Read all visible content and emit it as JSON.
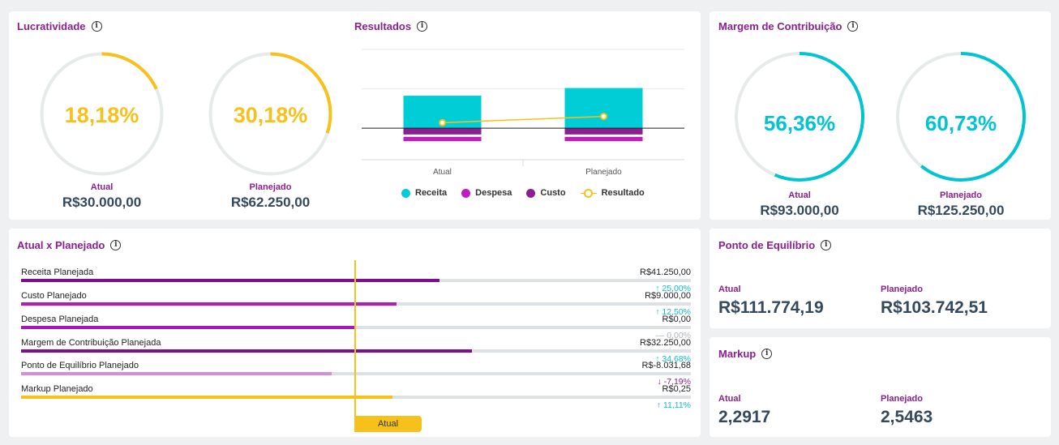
{
  "lucratividade": {
    "title": "Lucratividade",
    "info_icon": "i",
    "atual": {
      "percent_text": "18,18%",
      "percent": 18.18,
      "caption": "Atual",
      "amount": "R$30.000,00"
    },
    "planejado": {
      "percent_text": "30,18%",
      "percent": 30.18,
      "caption": "Planejado",
      "amount": "R$62.250,00"
    },
    "color": "#f5c11a"
  },
  "resultados": {
    "title": "Resultados",
    "info_icon": "i",
    "legend": [
      {
        "label": "Receita",
        "color": "#00cdd6"
      },
      {
        "label": "Despesa",
        "color": "#c41bbf"
      },
      {
        "label": "Custo",
        "color": "#8a1f8f"
      },
      {
        "label": "Resultado",
        "color": "#f5c11a"
      }
    ]
  },
  "chart_data": {
    "type": "bar",
    "categories": [
      "Atual",
      "Planejado"
    ],
    "series": [
      {
        "name": "Receita",
        "values": [
          41250,
          51000
        ],
        "color": "#00cdd6"
      },
      {
        "name": "Custo",
        "values": [
          -9000,
          -9000
        ],
        "color": "#8a1f8f"
      },
      {
        "name": "Despesa",
        "values": [
          -7500,
          -7500
        ],
        "color": "#c41bbf"
      },
      {
        "name": "Resultado",
        "type": "line",
        "values": [
          7000,
          15000
        ],
        "color": "#f5c11a"
      }
    ],
    "ylim": [
      -40000,
      100000
    ],
    "grid": true,
    "legend": "bottom"
  },
  "margem": {
    "title": "Margem de Contribuição",
    "info_icon": "i",
    "atual": {
      "percent_text": "56,36%",
      "percent": 56.36,
      "caption": "Atual",
      "amount": "R$93.000,00"
    },
    "planejado": {
      "percent_text": "60,73%",
      "percent": 60.73,
      "caption": "Planejado",
      "amount": "R$125.250,00"
    },
    "color": "#00c4cf"
  },
  "comparativo": {
    "title": "Atual x Planejado",
    "info_icon": "i",
    "marker_label": "Atual",
    "rows": [
      {
        "label": "Receita Planejada",
        "value": "R$41.250,00",
        "delta": "25,00%",
        "arrow": "↑",
        "fill_pct": 62.5,
        "color": "#7b0f8e",
        "delta_color": "#11bdc7"
      },
      {
        "label": "Custo Planejado",
        "value": "R$9.000,00",
        "delta": "12,50%",
        "arrow": "↑",
        "fill_pct": 56.0,
        "color": "#b51ab8",
        "delta_color": "#11bdc7"
      },
      {
        "label": "Despesa Planejada",
        "value": "R$0,00",
        "delta": "0,00%",
        "arrow": "—",
        "fill_pct": 50.0,
        "color": "#a21bb3",
        "delta_color": "#b0b6ba"
      },
      {
        "label": "Margem de Contribuição Planejada",
        "value": "R$32.250,00",
        "delta": "34,68%",
        "arrow": "↑",
        "fill_pct": 67.3,
        "color": "#7b0f8e",
        "delta_color": "#11bdc7"
      },
      {
        "label": "Ponto de Equilíbrio Planejado",
        "value": "R$-8.031,68",
        "delta": "-7,19%",
        "arrow": "↓",
        "fill_pct": 46.4,
        "color": "#d88ddb",
        "delta_color": "#8a1f8f"
      },
      {
        "label": "Markup Planejado",
        "value": "R$0,25",
        "delta": "11,11%",
        "arrow": "↑",
        "fill_pct": 55.5,
        "color": "#f5c11a",
        "delta_color": "#11bdc7"
      }
    ]
  },
  "ponto_equilibrio": {
    "title": "Ponto de Equilíbrio",
    "info_icon": "i",
    "atual_caption": "Atual",
    "atual_value": "R$111.774,19",
    "planejado_caption": "Planejado",
    "planejado_value": "R$103.742,51"
  },
  "markup": {
    "title": "Markup",
    "info_icon": "i",
    "atual_caption": "Atual",
    "atual_value": "2,2917",
    "planejado_caption": "Planejado",
    "planejado_value": "2,5463"
  }
}
